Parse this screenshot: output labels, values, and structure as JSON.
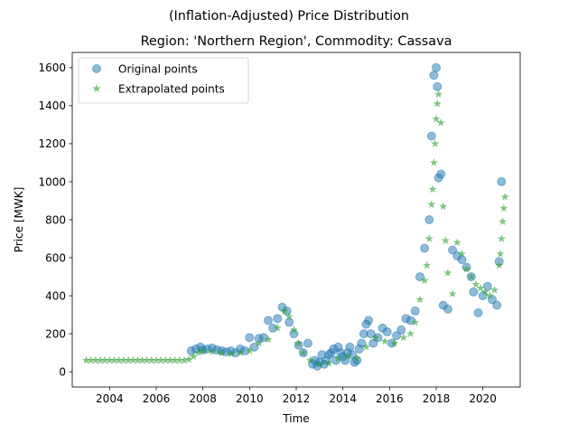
{
  "chart_data": {
    "type": "scatter",
    "suptitle": "(Inflation-Adjusted) Price Distribution",
    "title": "Region: 'Northern Region', Commodity: Cassava",
    "xlabel": "Time",
    "ylabel": "Price [MWK]",
    "xlim": [
      2002.4,
      2021.6
    ],
    "ylim": [
      -80,
      1680
    ],
    "xticks": [
      2004,
      2006,
      2008,
      2010,
      2012,
      2014,
      2016,
      2018,
      2020
    ],
    "yticks": [
      0,
      200,
      400,
      600,
      800,
      1000,
      1200,
      1400,
      1600
    ],
    "legend": "top-left",
    "series": [
      {
        "name": "Original points",
        "marker": "circle",
        "color": "#1f77b4",
        "x": [
          2007.5,
          2007.7,
          2007.9,
          2008.0,
          2008.2,
          2008.4,
          2008.6,
          2008.8,
          2009.0,
          2009.2,
          2009.4,
          2009.6,
          2009.8,
          2010.0,
          2010.2,
          2010.4,
          2010.6,
          2010.8,
          2011.0,
          2011.2,
          2011.4,
          2011.6,
          2011.7,
          2011.9,
          2012.1,
          2012.3,
          2012.5,
          2012.7,
          2012.8,
          2012.9,
          2013.0,
          2013.1,
          2013.2,
          2013.3,
          2013.4,
          2013.5,
          2013.6,
          2013.7,
          2013.8,
          2013.9,
          2014.0,
          2014.1,
          2014.2,
          2014.3,
          2014.4,
          2014.5,
          2014.6,
          2014.7,
          2014.8,
          2014.9,
          2015.0,
          2015.1,
          2015.2,
          2015.3,
          2015.5,
          2015.7,
          2015.9,
          2016.1,
          2016.3,
          2016.5,
          2016.7,
          2016.9,
          2017.1,
          2017.3,
          2017.5,
          2017.7,
          2017.8,
          2017.9,
          2018.0,
          2018.05,
          2018.1,
          2018.2,
          2018.3,
          2018.5,
          2018.7,
          2018.9,
          2019.1,
          2019.3,
          2019.5,
          2019.6,
          2019.8,
          2020.0,
          2020.2,
          2020.4,
          2020.6,
          2020.7,
          2020.8
        ],
        "y": [
          110,
          120,
          130,
          115,
          120,
          125,
          115,
          110,
          105,
          110,
          100,
          120,
          110,
          180,
          130,
          175,
          180,
          270,
          230,
          280,
          340,
          320,
          260,
          200,
          140,
          100,
          150,
          40,
          60,
          30,
          50,
          90,
          40,
          60,
          90,
          100,
          120,
          60,
          130,
          100,
          80,
          60,
          100,
          130,
          90,
          50,
          60,
          120,
          150,
          200,
          250,
          270,
          200,
          150,
          180,
          230,
          210,
          150,
          190,
          220,
          280,
          270,
          320,
          500,
          650,
          800,
          1240,
          1560,
          1600,
          1500,
          1020,
          1040,
          350,
          330,
          640,
          610,
          590,
          550,
          500,
          420,
          310,
          400,
          450,
          380,
          350,
          580,
          1000
        ]
      },
      {
        "name": "Extrapolated points",
        "marker": "star",
        "color": "#2ca02c",
        "x": [
          2003.0,
          2003.2,
          2003.4,
          2003.6,
          2003.8,
          2004.0,
          2004.2,
          2004.4,
          2004.6,
          2004.8,
          2005.0,
          2005.2,
          2005.4,
          2005.6,
          2005.8,
          2006.0,
          2006.2,
          2006.4,
          2006.6,
          2006.8,
          2007.0,
          2007.2,
          2007.4,
          2007.6,
          2007.8,
          2008.0,
          2008.4,
          2008.8,
          2009.2,
          2009.6,
          2010.0,
          2010.4,
          2010.8,
          2011.2,
          2011.5,
          2011.7,
          2011.9,
          2012.1,
          2012.3,
          2012.6,
          2013.0,
          2013.4,
          2013.8,
          2014.2,
          2014.6,
          2015.0,
          2015.4,
          2015.8,
          2016.2,
          2016.6,
          2016.9,
          2017.1,
          2017.3,
          2017.5,
          2017.6,
          2017.7,
          2017.8,
          2017.85,
          2017.9,
          2017.95,
          2018.0,
          2018.05,
          2018.1,
          2018.2,
          2018.3,
          2018.4,
          2018.5,
          2018.7,
          2018.9,
          2019.1,
          2019.3,
          2019.5,
          2019.7,
          2019.9,
          2020.1,
          2020.3,
          2020.5,
          2020.7,
          2020.75,
          2020.8,
          2020.85,
          2020.9,
          2020.95
        ],
        "y": [
          60,
          60,
          60,
          60,
          60,
          60,
          60,
          60,
          60,
          60,
          60,
          60,
          60,
          60,
          60,
          60,
          60,
          60,
          60,
          60,
          60,
          60,
          65,
          80,
          100,
          110,
          105,
          100,
          95,
          100,
          110,
          150,
          170,
          230,
          320,
          290,
          220,
          150,
          100,
          60,
          40,
          45,
          70,
          80,
          70,
          130,
          180,
          160,
          150,
          180,
          200,
          260,
          380,
          480,
          560,
          700,
          880,
          960,
          1100,
          1200,
          1330,
          1410,
          1460,
          1310,
          870,
          690,
          520,
          410,
          680,
          620,
          540,
          500,
          460,
          440,
          420,
          400,
          430,
          560,
          620,
          700,
          790,
          860,
          920
        ]
      }
    ]
  }
}
